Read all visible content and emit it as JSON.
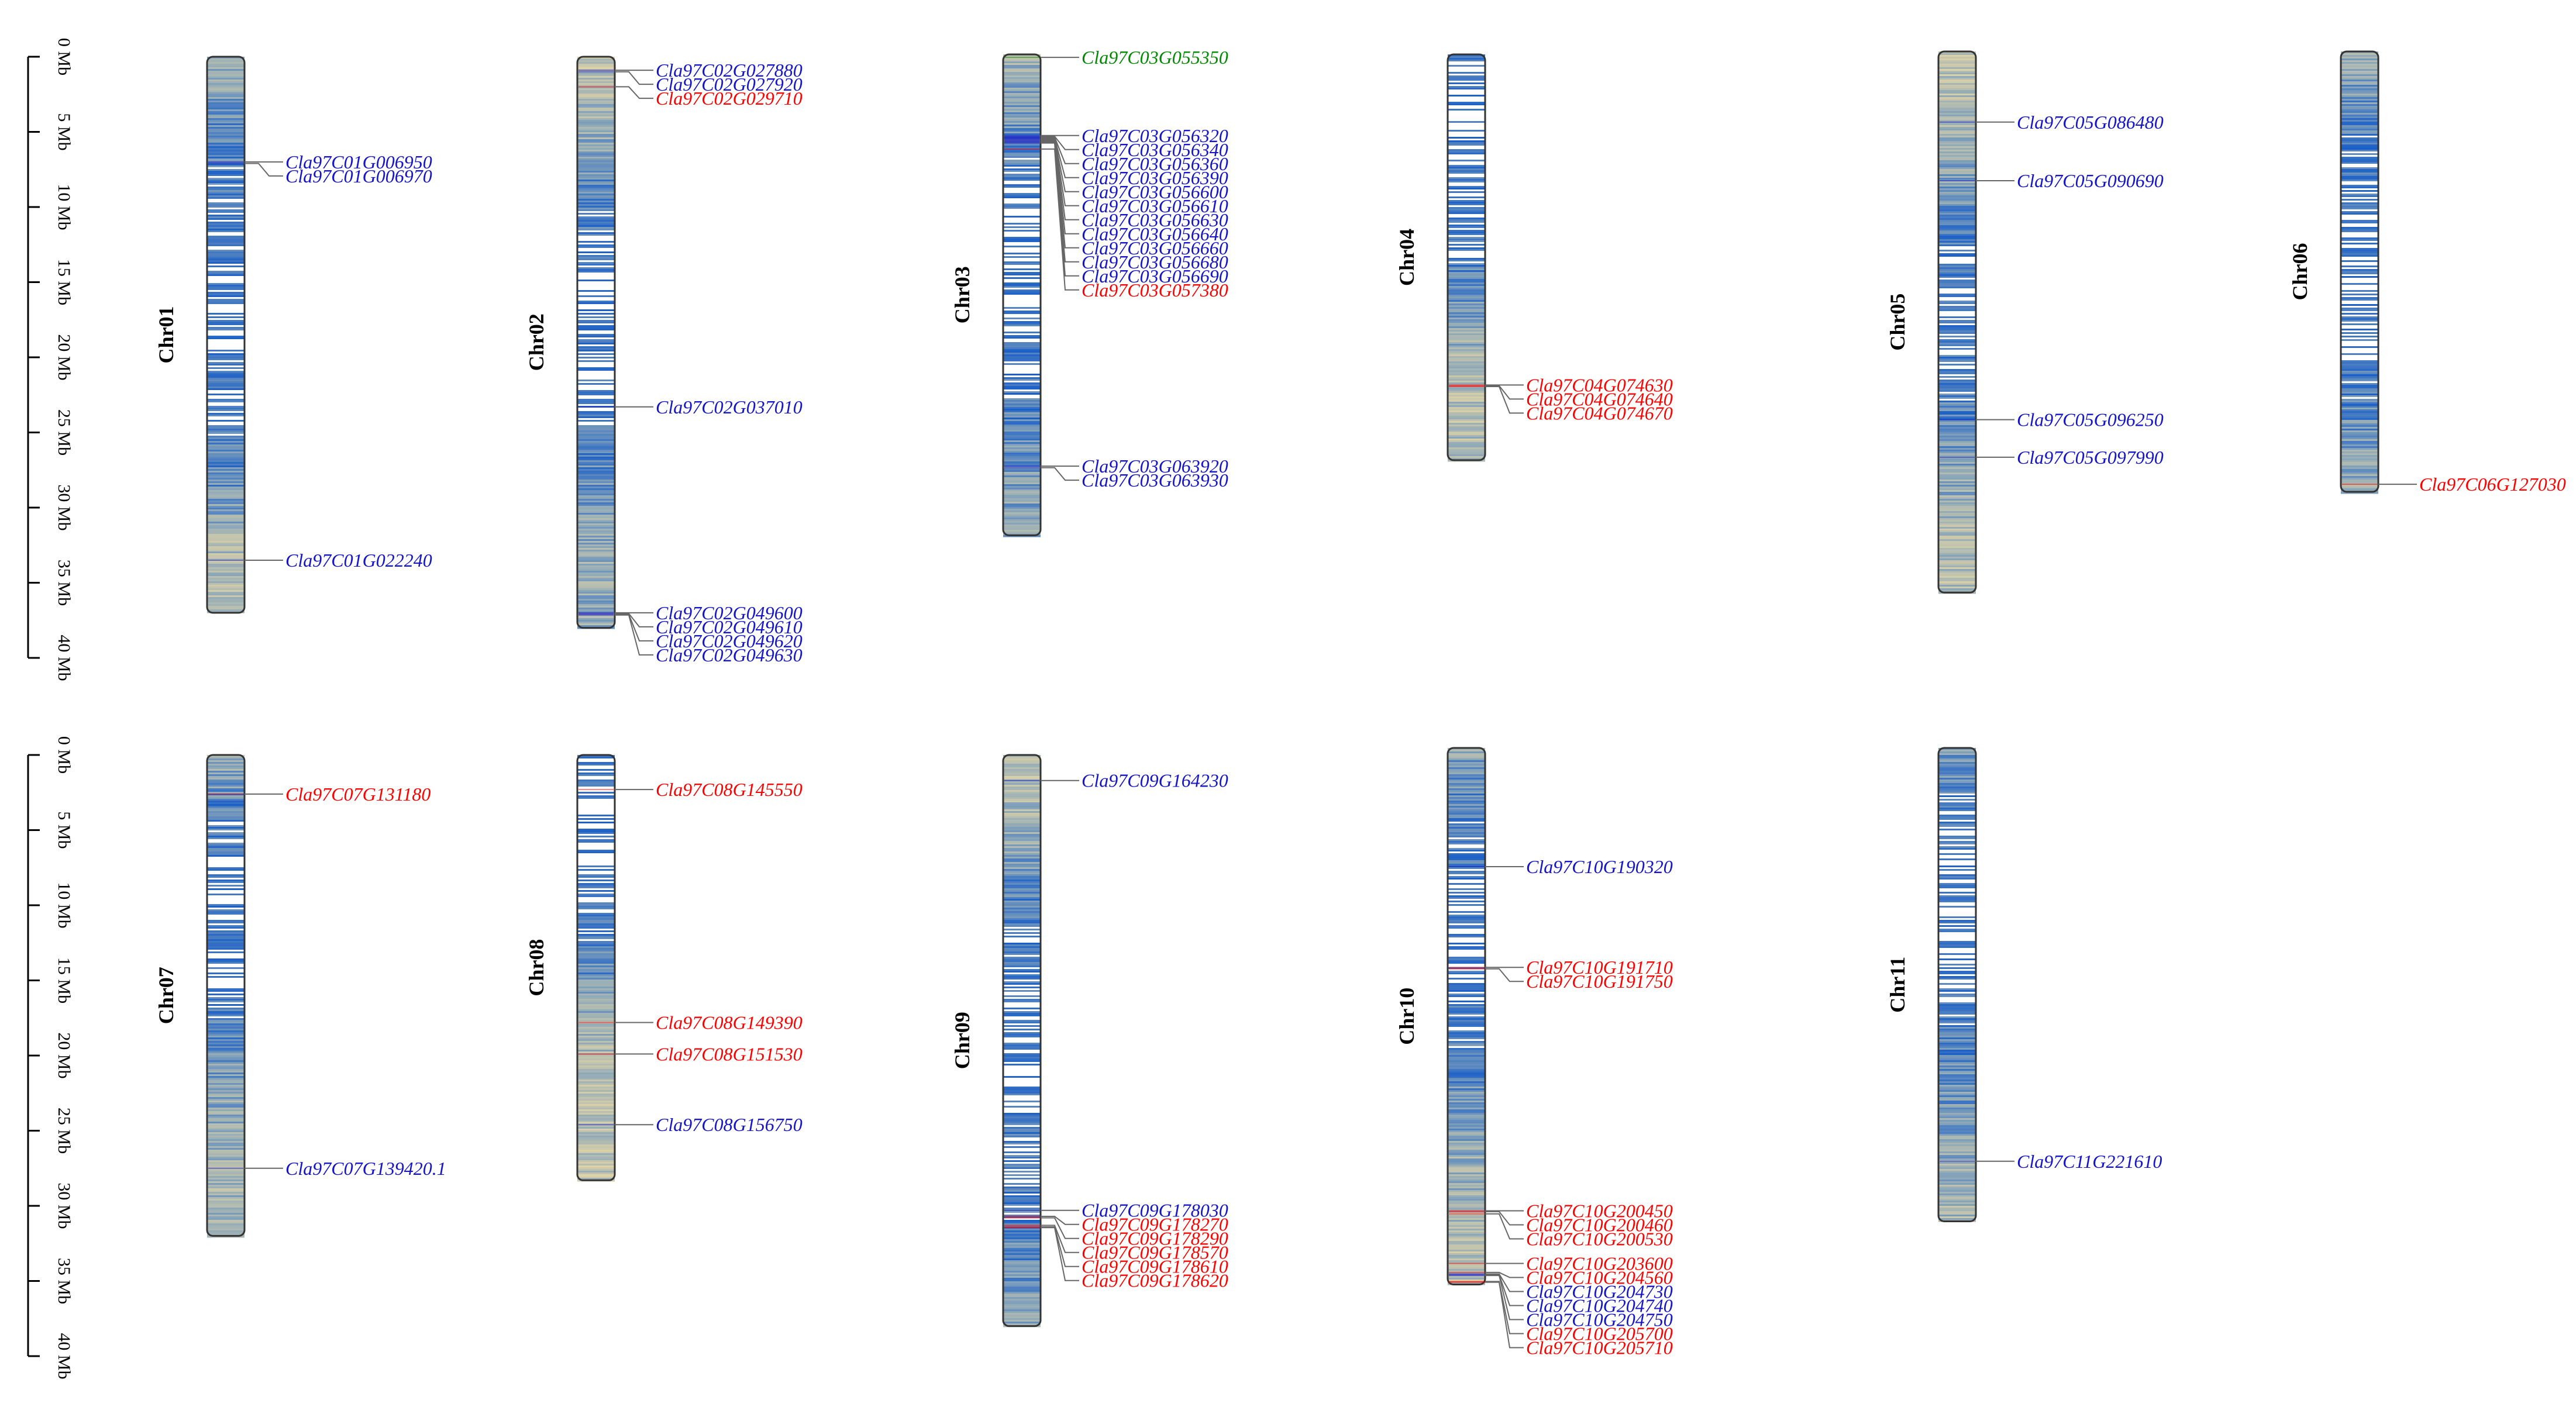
{
  "figure": {
    "type": "chromosome-location-map",
    "scale_unit": "Mb",
    "scale_ticks": [
      "0 Mb",
      "5 Mb",
      "10 Mb",
      "15 Mb",
      "20 Mb",
      "25 Mb",
      "30 Mb",
      "35 Mb",
      "40 Mb"
    ],
    "colors": {
      "red": "#ff0000",
      "blue": "#1414c8",
      "green": "#008a00",
      "density_high": "#1a5fc8",
      "density_mid": "#8fa9b8",
      "density_low": "#e7d7a6"
    }
  },
  "chromosomes": [
    {
      "name": "Chr01",
      "length_mb": 37.0,
      "genes": [
        {
          "id": "Cla97C01G006950",
          "pos_mb": 7.0,
          "color": "blue"
        },
        {
          "id": "Cla97C01G006970",
          "pos_mb": 7.1,
          "color": "blue"
        },
        {
          "id": "Cla97C01G022240",
          "pos_mb": 33.5,
          "color": "blue"
        }
      ]
    },
    {
      "name": "Chr02",
      "length_mb": 38.0,
      "genes": [
        {
          "id": "Cla97C02G027880",
          "pos_mb": 0.9,
          "color": "blue"
        },
        {
          "id": "Cla97C02G027920",
          "pos_mb": 1.0,
          "color": "blue"
        },
        {
          "id": "Cla97C02G029710",
          "pos_mb": 2.0,
          "color": "red"
        },
        {
          "id": "Cla97C02G037010",
          "pos_mb": 23.3,
          "color": "blue"
        },
        {
          "id": "Cla97C02G049600",
          "pos_mb": 37.0,
          "color": "blue"
        },
        {
          "id": "Cla97C02G049610",
          "pos_mb": 37.05,
          "color": "blue"
        },
        {
          "id": "Cla97C02G049620",
          "pos_mb": 37.1,
          "color": "blue"
        },
        {
          "id": "Cla97C02G049630",
          "pos_mb": 37.15,
          "color": "blue"
        }
      ]
    },
    {
      "name": "Chr03",
      "length_mb": 32.0,
      "genes": [
        {
          "id": "Cla97C03G055350",
          "pos_mb": 0.2,
          "color": "green"
        },
        {
          "id": "Cla97C03G056320",
          "pos_mb": 5.4,
          "color": "blue"
        },
        {
          "id": "Cla97C03G056340",
          "pos_mb": 5.45,
          "color": "blue"
        },
        {
          "id": "Cla97C03G056360",
          "pos_mb": 5.5,
          "color": "blue"
        },
        {
          "id": "Cla97C03G056390",
          "pos_mb": 5.55,
          "color": "blue"
        },
        {
          "id": "Cla97C03G056600",
          "pos_mb": 5.6,
          "color": "blue"
        },
        {
          "id": "Cla97C03G056610",
          "pos_mb": 5.65,
          "color": "blue"
        },
        {
          "id": "Cla97C03G056630",
          "pos_mb": 5.7,
          "color": "blue"
        },
        {
          "id": "Cla97C03G056640",
          "pos_mb": 5.75,
          "color": "blue"
        },
        {
          "id": "Cla97C03G056660",
          "pos_mb": 5.8,
          "color": "blue"
        },
        {
          "id": "Cla97C03G056680",
          "pos_mb": 5.85,
          "color": "blue"
        },
        {
          "id": "Cla97C03G056690",
          "pos_mb": 5.9,
          "color": "blue"
        },
        {
          "id": "Cla97C03G057380",
          "pos_mb": 6.3,
          "color": "red"
        },
        {
          "id": "Cla97C03G063920",
          "pos_mb": 27.4,
          "color": "blue"
        },
        {
          "id": "Cla97C03G063930",
          "pos_mb": 27.5,
          "color": "blue"
        }
      ]
    },
    {
      "name": "Chr04",
      "length_mb": 27.0,
      "genes": [
        {
          "id": "Cla97C04G074630",
          "pos_mb": 22.0,
          "color": "red"
        },
        {
          "id": "Cla97C04G074640",
          "pos_mb": 22.05,
          "color": "red"
        },
        {
          "id": "Cla97C04G074670",
          "pos_mb": 22.1,
          "color": "red"
        }
      ]
    },
    {
      "name": "Chr05",
      "length_mb": 36.0,
      "genes": [
        {
          "id": "Cla97C05G086480",
          "pos_mb": 4.7,
          "color": "blue"
        },
        {
          "id": "Cla97C05G090690",
          "pos_mb": 8.6,
          "color": "blue"
        },
        {
          "id": "Cla97C05G096250",
          "pos_mb": 24.5,
          "color": "blue"
        },
        {
          "id": "Cla97C05G097990",
          "pos_mb": 27.0,
          "color": "blue"
        }
      ]
    },
    {
      "name": "Chr06",
      "length_mb": 29.3,
      "genes": [
        {
          "id": "Cla97C06G127030",
          "pos_mb": 28.8,
          "color": "red"
        }
      ]
    },
    {
      "name": "Chr07",
      "length_mb": 32.0,
      "genes": [
        {
          "id": "Cla97C07G131180",
          "pos_mb": 2.6,
          "color": "red"
        },
        {
          "id": "Cla97C07G139420.1",
          "pos_mb": 27.5,
          "color": "blue"
        }
      ]
    },
    {
      "name": "Chr08",
      "length_mb": 28.3,
      "genes": [
        {
          "id": "Cla97C08G145550",
          "pos_mb": 2.3,
          "color": "red"
        },
        {
          "id": "Cla97C08G149390",
          "pos_mb": 17.8,
          "color": "red"
        },
        {
          "id": "Cla97C08G151530",
          "pos_mb": 19.9,
          "color": "red"
        },
        {
          "id": "Cla97C08G156750",
          "pos_mb": 24.6,
          "color": "blue"
        }
      ]
    },
    {
      "name": "Chr09",
      "length_mb": 38.0,
      "genes": [
        {
          "id": "Cla97C09G164230",
          "pos_mb": 1.7,
          "color": "blue"
        },
        {
          "id": "Cla97C09G178030",
          "pos_mb": 30.3,
          "color": "blue"
        },
        {
          "id": "Cla97C09G178270",
          "pos_mb": 30.7,
          "color": "red"
        },
        {
          "id": "Cla97C09G178290",
          "pos_mb": 30.8,
          "color": "red"
        },
        {
          "id": "Cla97C09G178570",
          "pos_mb": 31.3,
          "color": "red"
        },
        {
          "id": "Cla97C09G178610",
          "pos_mb": 31.4,
          "color": "red"
        },
        {
          "id": "Cla97C09G178620",
          "pos_mb": 31.45,
          "color": "red"
        }
      ]
    },
    {
      "name": "Chr10",
      "length_mb": 35.7,
      "genes": [
        {
          "id": "Cla97C10G190320",
          "pos_mb": 7.9,
          "color": "blue"
        },
        {
          "id": "Cla97C10G191710",
          "pos_mb": 14.6,
          "color": "red"
        },
        {
          "id": "Cla97C10G191750",
          "pos_mb": 14.7,
          "color": "red"
        },
        {
          "id": "Cla97C10G200450",
          "pos_mb": 30.8,
          "color": "red"
        },
        {
          "id": "Cla97C10G200460",
          "pos_mb": 30.85,
          "color": "red"
        },
        {
          "id": "Cla97C10G200530",
          "pos_mb": 31.0,
          "color": "red"
        },
        {
          "id": "Cla97C10G203600",
          "pos_mb": 34.3,
          "color": "red"
        },
        {
          "id": "Cla97C10G204560",
          "pos_mb": 34.9,
          "color": "red"
        },
        {
          "id": "Cla97C10G204730",
          "pos_mb": 35.0,
          "color": "blue"
        },
        {
          "id": "Cla97C10G204740",
          "pos_mb": 35.05,
          "color": "blue"
        },
        {
          "id": "Cla97C10G204750",
          "pos_mb": 35.1,
          "color": "blue"
        },
        {
          "id": "Cla97C10G205700",
          "pos_mb": 35.5,
          "color": "red"
        },
        {
          "id": "Cla97C10G205710",
          "pos_mb": 35.55,
          "color": "red"
        }
      ]
    },
    {
      "name": "Chr11",
      "length_mb": 31.5,
      "genes": [
        {
          "id": "Cla97C11G221610",
          "pos_mb": 27.5,
          "color": "blue"
        }
      ]
    }
  ]
}
